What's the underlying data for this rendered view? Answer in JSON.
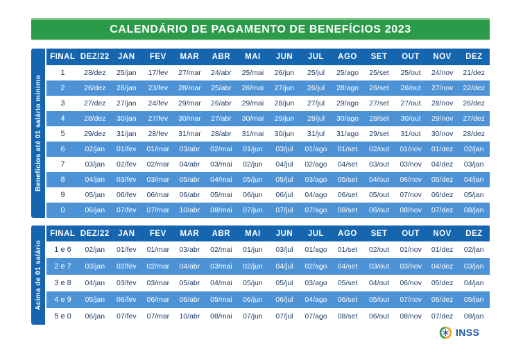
{
  "title": "CALENDÁRIO DE PAGAMENTO DE BENEFÍCIOS 2023",
  "columns": [
    "FINAL",
    "DEZ/22",
    "JAN",
    "FEV",
    "MAR",
    "ABR",
    "MAI",
    "JUN",
    "JUL",
    "AGO",
    "SET",
    "OUT",
    "NOV",
    "DEZ"
  ],
  "tables": [
    {
      "side_label": "Benefícios até 01 salário mínimo",
      "rows": [
        {
          "final": "1",
          "dates": [
            "23/dez",
            "25/jan",
            "17/fev",
            "27/mar",
            "24/abr",
            "25/mai",
            "26/jun",
            "25/jul",
            "25/ago",
            "25/set",
            "25/out",
            "24/nov",
            "21/dez"
          ]
        },
        {
          "final": "2",
          "dates": [
            "26/dez",
            "26/jan",
            "23/fev",
            "28/mar",
            "25/abr",
            "26/mai",
            "27/jun",
            "26/jul",
            "28/ago",
            "26/set",
            "26/out",
            "27/nov",
            "22/dez"
          ]
        },
        {
          "final": "3",
          "dates": [
            "27/dez",
            "27/jan",
            "24/fev",
            "29/mar",
            "26/abr",
            "29/mai",
            "28/jun",
            "27/jul",
            "29/ago",
            "27/set",
            "27/out",
            "28/nov",
            "26/dez"
          ]
        },
        {
          "final": "4",
          "dates": [
            "28/dez",
            "30/jan",
            "27/fev",
            "30/mar",
            "27/abr",
            "30/mai",
            "29/jun",
            "28/jul",
            "30/ago",
            "28/set",
            "30/out",
            "29/nov",
            "27/dez"
          ]
        },
        {
          "final": "5",
          "dates": [
            "29/dez",
            "31/jan",
            "28/fev",
            "31/mar",
            "28/abr",
            "31/mai",
            "30/jun",
            "31/jul",
            "31/ago",
            "29/set",
            "31/out",
            "30/nov",
            "28/dez"
          ]
        },
        {
          "final": "6",
          "dates": [
            "02/jan",
            "01/fev",
            "01/mar",
            "03/abr",
            "02/mai",
            "01/jun",
            "03/jul",
            "01/ago",
            "01/set",
            "02/out",
            "01/nov",
            "01/dez",
            "02/jan"
          ]
        },
        {
          "final": "7",
          "dates": [
            "03/jan",
            "02/fev",
            "02/mar",
            "04/abr",
            "03/mai",
            "02/jun",
            "04/jul",
            "02/ago",
            "04/set",
            "03/out",
            "03/nov",
            "04/dez",
            "03/jan"
          ]
        },
        {
          "final": "8",
          "dates": [
            "04/jan",
            "03/fev",
            "03/mar",
            "05/abr",
            "04/mai",
            "05/jun",
            "05/jul",
            "03/ago",
            "05/set",
            "04/out",
            "06/nov",
            "05/dez",
            "04/jan"
          ]
        },
        {
          "final": "9",
          "dates": [
            "05/jan",
            "06/fev",
            "06/mar",
            "06/abr",
            "05/mai",
            "06/jun",
            "06/jul",
            "04/ago",
            "06/set",
            "05/out",
            "07/nov",
            "06/dez",
            "05/jan"
          ]
        },
        {
          "final": "0",
          "dates": [
            "06/jan",
            "07/fev",
            "07/mar",
            "10/abr",
            "08/mai",
            "07/jun",
            "07/jul",
            "07/ago",
            "08/set",
            "06/out",
            "08/nov",
            "07/dez",
            "08/jan"
          ]
        }
      ]
    },
    {
      "side_label": "Acima de 01 salário",
      "rows": [
        {
          "final": "1 e 6",
          "dates": [
            "02/jan",
            "01/fev",
            "01/mar",
            "03/abr",
            "02/mai",
            "01/jun",
            "03/jul",
            "01/ago",
            "01/set",
            "02/out",
            "01/nov",
            "01/dez",
            "02/jan"
          ]
        },
        {
          "final": "2 e 7",
          "dates": [
            "03/jan",
            "02/fev",
            "02/mar",
            "04/abr",
            "03/mai",
            "02/jun",
            "04/jul",
            "02/ago",
            "04/set",
            "03/out",
            "03/nov",
            "04/dez",
            "03/jan"
          ]
        },
        {
          "final": "3 e 8",
          "dates": [
            "04/jan",
            "03/fev",
            "03/mar",
            "05/abr",
            "04/mai",
            "05/jun",
            "05/jul",
            "03/ago",
            "05/set",
            "04/out",
            "06/nov",
            "05/dez",
            "04/jan"
          ]
        },
        {
          "final": "4 e 9",
          "dates": [
            "05/jan",
            "06/fev",
            "06/mar",
            "06/abr",
            "05/mai",
            "06/jun",
            "06/jul",
            "04/ago",
            "06/set",
            "05/out",
            "07/nov",
            "06/dez",
            "05/jan"
          ]
        },
        {
          "final": "5 e 0",
          "dates": [
            "06/jan",
            "07/fev",
            "07/mar",
            "10/abr",
            "08/mai",
            "07/jun",
            "07/jul",
            "07/ago",
            "08/set",
            "06/out",
            "08/nov",
            "07/dez",
            "08/jan"
          ]
        }
      ]
    }
  ],
  "logo": {
    "text": "INSS"
  },
  "colors": {
    "banner_green": "#2b9a4b",
    "banner_green_light": "#7cc488",
    "header_blue": "#1565af",
    "row_blue": "#4e92d6",
    "navy_text": "#1c3b66",
    "logo_blue": "#1b55a5",
    "logo_green": "#2e9b4c",
    "logo_orange": "#f7a21b"
  }
}
